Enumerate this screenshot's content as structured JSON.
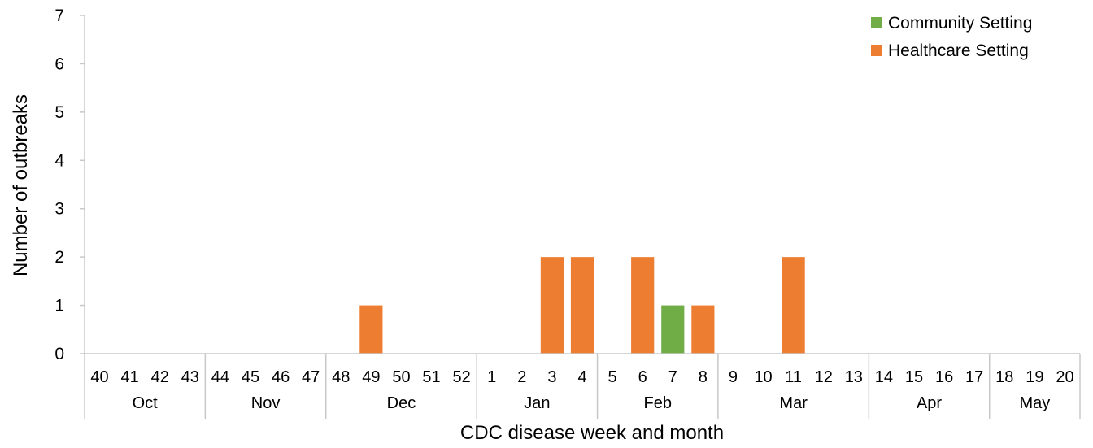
{
  "chart_data": {
    "type": "bar",
    "xlabel": "CDC disease week and month",
    "ylabel": "Number of outbreaks",
    "ylim": [
      0,
      7
    ],
    "yticks": [
      0,
      1,
      2,
      3,
      4,
      5,
      6,
      7
    ],
    "grid": false,
    "legend_position": "top-right",
    "categories": [
      "40",
      "41",
      "42",
      "43",
      "44",
      "45",
      "46",
      "47",
      "48",
      "49",
      "50",
      "51",
      "52",
      "1",
      "2",
      "3",
      "4",
      "5",
      "6",
      "7",
      "8",
      "9",
      "10",
      "11",
      "12",
      "13",
      "14",
      "15",
      "16",
      "17",
      "18",
      "19",
      "20"
    ],
    "months": [
      {
        "label": "Oct",
        "weeks": 4
      },
      {
        "label": "Nov",
        "weeks": 4
      },
      {
        "label": "Dec",
        "weeks": 5
      },
      {
        "label": "Jan",
        "weeks": 4
      },
      {
        "label": "Feb",
        "weeks": 4
      },
      {
        "label": "Mar",
        "weeks": 5
      },
      {
        "label": "Apr",
        "weeks": 4
      },
      {
        "label": "May",
        "weeks": 3
      }
    ],
    "series": [
      {
        "name": "Community Setting",
        "color": "#70ad47",
        "values": [
          0,
          0,
          0,
          0,
          0,
          0,
          0,
          0,
          0,
          0,
          0,
          0,
          0,
          0,
          0,
          0,
          0,
          0,
          0,
          1,
          0,
          0,
          0,
          0,
          0,
          0,
          0,
          0,
          0,
          0,
          0,
          0,
          0
        ]
      },
      {
        "name": "Healthcare Setting",
        "color": "#ed7d31",
        "values": [
          0,
          0,
          0,
          0,
          0,
          0,
          0,
          0,
          0,
          1,
          0,
          0,
          0,
          0,
          0,
          2,
          2,
          0,
          2,
          0,
          1,
          0,
          0,
          2,
          0,
          0,
          0,
          0,
          0,
          0,
          0,
          0,
          0
        ]
      }
    ]
  }
}
